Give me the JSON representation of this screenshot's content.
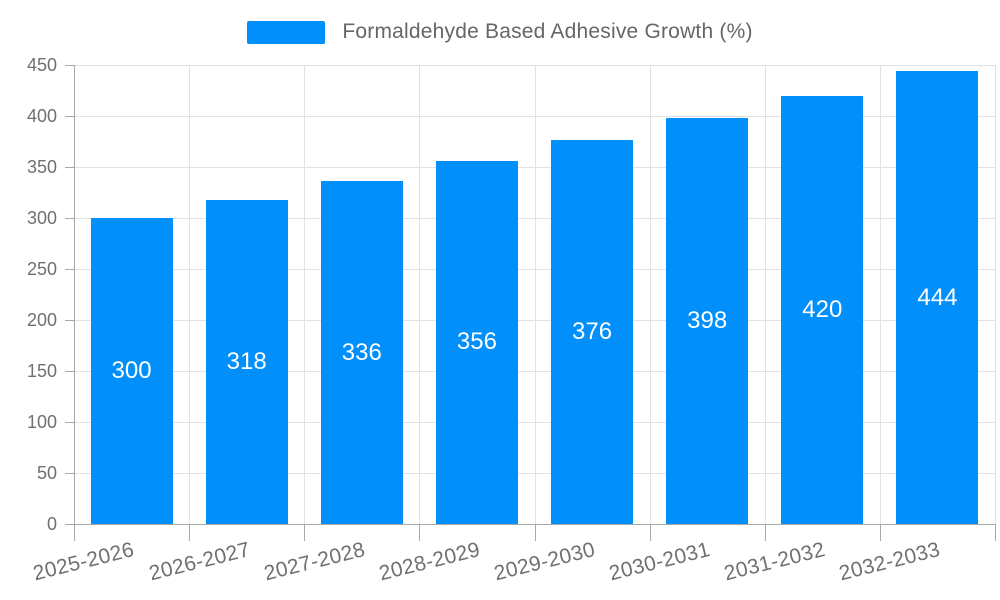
{
  "legend": {
    "label": "Formaldehyde Based Adhesive Growth (%)"
  },
  "chart_data": {
    "type": "bar",
    "title": "Formaldehyde Based Adhesive Growth (%)",
    "categories": [
      "2025-2026",
      "2026-2027",
      "2027-2028",
      "2028-2029",
      "2029-2030",
      "2030-2031",
      "2031-2032",
      "2032-2033"
    ],
    "values": [
      300,
      318,
      336,
      356,
      376,
      398,
      420,
      444
    ],
    "xlabel": "",
    "ylabel": "",
    "ylim": [
      0,
      450
    ],
    "yticks": [
      0,
      50,
      100,
      150,
      200,
      250,
      300,
      350,
      400,
      450
    ],
    "grid": true,
    "legend_position": "top-center",
    "value_label_position": "inside-middle"
  },
  "colors": {
    "bar": "#008FFB",
    "gridline": "#e2e2e2",
    "axis": "#a8a8a8",
    "axis_label": "#707070",
    "legend_text": "#666666",
    "value_label": "#ffffff",
    "background": "#ffffff"
  }
}
